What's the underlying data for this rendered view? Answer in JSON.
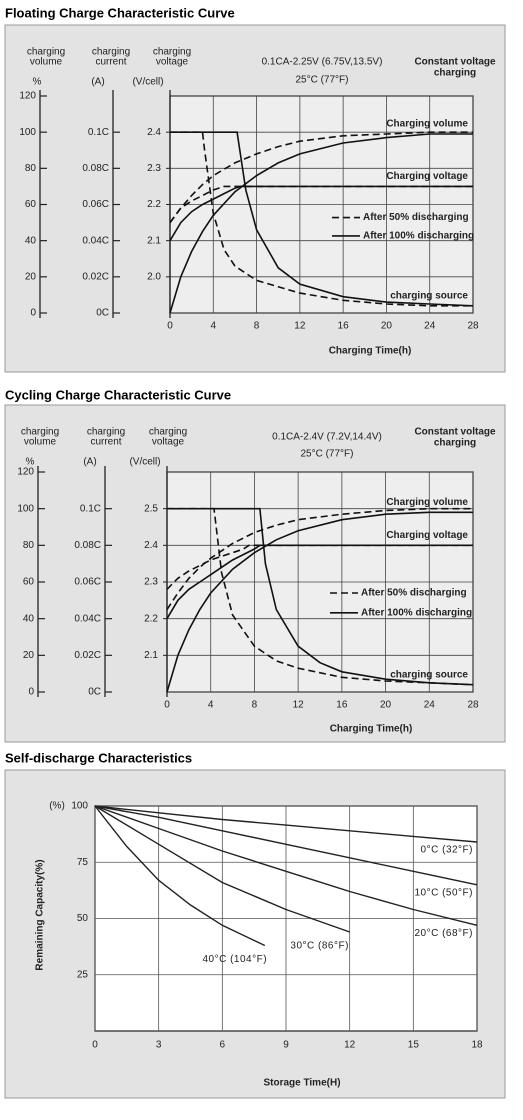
{
  "chart_data": [
    {
      "type": "multi_axis_line",
      "title": "Floating Charge Characteristic Curve",
      "x_label": "Charging Time(h)",
      "xlim": [
        0,
        28
      ],
      "xticks": [
        0,
        4,
        8,
        12,
        16,
        20,
        24,
        28
      ],
      "grid": true,
      "annotations": [
        "0.1CA-2.25V (6.75V,13.5V)",
        "25°C (77°F)",
        "Constant voltage",
        "charging"
      ],
      "axes": [
        {
          "label": [
            "charging",
            "volume"
          ],
          "unit": "%",
          "lim": [
            0,
            120
          ],
          "ticks": [
            0,
            20,
            40,
            60,
            80,
            100,
            120
          ]
        },
        {
          "label": [
            "charging",
            "current"
          ],
          "unit": "(A)",
          "lim": [
            0,
            0.12
          ],
          "ticks": [
            {
              "value": 0,
              "label": "0C"
            },
            {
              "value": 0.02,
              "label": "0.02C"
            },
            {
              "value": 0.04,
              "label": "0.04C"
            },
            {
              "value": 0.06,
              "label": "0.06C"
            },
            {
              "value": 0.08,
              "label": "0.08C"
            },
            {
              "value": 0.1,
              "label": "0.1C"
            }
          ]
        },
        {
          "label": [
            "charging",
            "voltage"
          ],
          "unit": "(V/cell)",
          "lim": [
            1.9,
            2.5
          ],
          "ticks": [
            {
              "value": 2,
              "label": "2.0"
            },
            2.1,
            2.2,
            2.3,
            2.4
          ]
        }
      ],
      "legend": [
        {
          "name": "After 50% discharging",
          "dash": "dashed"
        },
        {
          "name": "After 100% discharging",
          "dash": "solid"
        }
      ],
      "series": [
        {
          "name": "Charging volume",
          "axis": 0,
          "curves": [
            {
              "x": [
                0,
                1,
                2,
                3,
                4,
                6,
                8,
                10,
                12,
                16,
                20,
                24,
                28
              ],
              "values": [
                50,
                58,
                65,
                71,
                76,
                83,
                88,
                92,
                95,
                98,
                99,
                100,
                100
              ]
            },
            {
              "x": [
                0,
                1,
                2,
                3,
                4,
                6,
                8,
                10,
                12,
                16,
                20,
                24,
                28
              ],
              "values": [
                0,
                20,
                34,
                45,
                54,
                67,
                76,
                83,
                88,
                94,
                97,
                99,
                99
              ]
            }
          ]
        },
        {
          "name": "Charging voltage",
          "axis": 2,
          "curves": [
            {
              "x": [
                0,
                1,
                2,
                3,
                4,
                5,
                28
              ],
              "values": [
                2.15,
                2.19,
                2.21,
                2.225,
                2.24,
                2.25,
                2.25
              ]
            },
            {
              "x": [
                0,
                1,
                2,
                3,
                4,
                5,
                6,
                6.5,
                28
              ],
              "values": [
                2.1,
                2.15,
                2.18,
                2.2,
                2.215,
                2.23,
                2.245,
                2.25,
                2.25
              ]
            }
          ]
        },
        {
          "name": "charging source",
          "axis": 1,
          "curves": [
            {
              "x": [
                0,
                3,
                3.2,
                4,
                5,
                6,
                8,
                12,
                16,
                20,
                24,
                28
              ],
              "values": [
                0.1,
                0.1,
                0.09,
                0.055,
                0.035,
                0.026,
                0.018,
                0.011,
                0.007,
                0.005,
                0.004,
                0.004
              ]
            },
            {
              "x": [
                0,
                6.2,
                7,
                8,
                10,
                12,
                16,
                20,
                24,
                28
              ],
              "values": [
                0.1,
                0.1,
                0.068,
                0.046,
                0.025,
                0.016,
                0.009,
                0.006,
                0.005,
                0.004
              ]
            }
          ]
        }
      ]
    },
    {
      "type": "multi_axis_line",
      "title": "Cycling Charge Characteristic Curve",
      "x_label": "Charging Time(h)",
      "xlim": [
        0,
        28
      ],
      "xticks": [
        0,
        4,
        8,
        12,
        16,
        20,
        24,
        28
      ],
      "grid": true,
      "annotations": [
        "0.1CA-2.4V (7.2V,14.4V)",
        "25°C (77°F)",
        "Constant voltage",
        "charging"
      ],
      "axes": [
        {
          "label": [
            "charging",
            "volume"
          ],
          "unit": "%",
          "lim": [
            0,
            120
          ],
          "ticks": [
            0,
            20,
            40,
            60,
            80,
            100,
            120
          ]
        },
        {
          "label": [
            "charging",
            "current"
          ],
          "unit": "(A)",
          "lim": [
            0,
            0.12
          ],
          "ticks": [
            {
              "value": 0,
              "label": "0C"
            },
            {
              "value": 0.02,
              "label": "0.02C"
            },
            {
              "value": 0.04,
              "label": "0.04C"
            },
            {
              "value": 0.06,
              "label": "0.06C"
            },
            {
              "value": 0.08,
              "label": "0.08C"
            },
            {
              "value": 0.1,
              "label": "0.1C"
            }
          ]
        },
        {
          "label": [
            "charging",
            "voltage"
          ],
          "unit": "(V/cell)",
          "lim": [
            2.0,
            2.6
          ],
          "ticks": [
            2.1,
            2.2,
            2.3,
            2.4,
            2.5
          ]
        }
      ],
      "legend": [
        {
          "name": "After 50% discharging",
          "dash": "dashed"
        },
        {
          "name": "After 100% discharging",
          "dash": "solid"
        }
      ],
      "series": [
        {
          "name": "Charging volume",
          "axis": 0,
          "curves": [
            {
              "x": [
                0,
                1,
                2,
                3,
                4,
                6,
                8,
                10,
                12,
                16,
                20,
                24,
                28
              ],
              "values": [
                45,
                54,
                62,
                68,
                73,
                81,
                87,
                91,
                94,
                97,
                99,
                100,
                100
              ]
            },
            {
              "x": [
                0,
                1,
                2,
                3,
                4,
                6,
                8,
                10,
                12,
                16,
                20,
                24,
                28
              ],
              "values": [
                0,
                20,
                34,
                45,
                54,
                67,
                76,
                83,
                88,
                94,
                97,
                98,
                98
              ]
            }
          ]
        },
        {
          "name": "Charging voltage",
          "axis": 2,
          "curves": [
            {
              "x": [
                0,
                1,
                2,
                3,
                4,
                5,
                6,
                7,
                7.5,
                28
              ],
              "values": [
                2.28,
                2.31,
                2.33,
                2.345,
                2.36,
                2.37,
                2.38,
                2.39,
                2.4,
                2.4
              ]
            },
            {
              "x": [
                0,
                1,
                2,
                3,
                4,
                5,
                6,
                7,
                8,
                8.5,
                28
              ],
              "values": [
                2.2,
                2.25,
                2.28,
                2.3,
                2.32,
                2.34,
                2.36,
                2.375,
                2.39,
                2.4,
                2.4
              ]
            }
          ]
        },
        {
          "name": "charging source",
          "axis": 1,
          "curves": [
            {
              "x": [
                0,
                4.3,
                4.5,
                5,
                6,
                8,
                10,
                12,
                16,
                20,
                24,
                28
              ],
              "values": [
                0.1,
                0.1,
                0.09,
                0.065,
                0.042,
                0.025,
                0.017,
                0.013,
                0.008,
                0.006,
                0.005,
                0.004
              ]
            },
            {
              "x": [
                0,
                8.5,
                9,
                10,
                12,
                14,
                16,
                20,
                24,
                28
              ],
              "values": [
                0.1,
                0.1,
                0.07,
                0.045,
                0.025,
                0.016,
                0.011,
                0.007,
                0.005,
                0.004
              ]
            }
          ]
        }
      ]
    },
    {
      "type": "line",
      "title": "Self-discharge Characteristics",
      "x_label": "Storage Time(H)",
      "y_label": "Remaining Capacity(%)",
      "y_unit": "(%)",
      "xlim": [
        0,
        18
      ],
      "xticks": [
        0,
        3,
        6,
        9,
        12,
        15,
        18
      ],
      "ylim": [
        0,
        100
      ],
      "yticks": [
        25,
        50,
        75,
        100
      ],
      "grid": true,
      "series": [
        {
          "name": "0°C (32°F)",
          "color": "#222222",
          "x": [
            0,
            3,
            6,
            9,
            12,
            15,
            18
          ],
          "values": [
            100,
            97,
            94,
            91.5,
            89,
            86.5,
            84
          ]
        },
        {
          "name": "10°C (50°F)",
          "color": "#222222",
          "x": [
            0,
            3,
            6,
            9,
            12,
            15,
            18
          ],
          "values": [
            100,
            95,
            89,
            83,
            77,
            71,
            65
          ]
        },
        {
          "name": "20°C (68°F)",
          "color": "#222222",
          "x": [
            0,
            3,
            6,
            9,
            12,
            15,
            18
          ],
          "values": [
            100,
            90,
            80,
            71,
            62,
            54,
            47
          ]
        },
        {
          "name": "30°C (86°F)",
          "color": "#222222",
          "x": [
            0,
            3,
            6,
            9,
            12
          ],
          "values": [
            100,
            83,
            66,
            54,
            44
          ]
        },
        {
          "name": "40°C (104°F)",
          "color": "#222222",
          "x": [
            0,
            1.5,
            3,
            4.5,
            6,
            8
          ],
          "values": [
            100,
            82,
            67,
            56,
            47,
            38
          ]
        }
      ]
    }
  ]
}
